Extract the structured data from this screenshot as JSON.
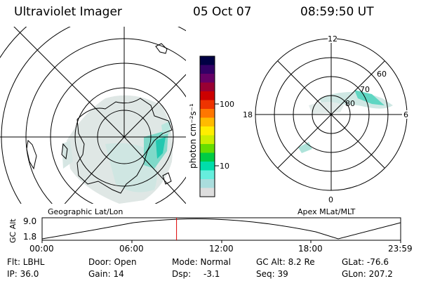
{
  "header": {
    "title": "Ultraviolet Imager",
    "date": "05 Oct 07",
    "time": "08:59:50 UT"
  },
  "colorbar": {
    "unit": "photon cm⁻²s⁻¹",
    "ticks": [
      "100",
      "10"
    ],
    "colors": [
      "#000044",
      "#330066",
      "#660066",
      "#990033",
      "#cc0000",
      "#ee3300",
      "#ff7700",
      "#ffbb00",
      "#ffee00",
      "#ccee00",
      "#66dd00",
      "#00cc44",
      "#00ddaa",
      "#66eedd",
      "#aadddd",
      "#dddddd"
    ]
  },
  "left_panel": {
    "label": "Geographic Lat/Lon"
  },
  "right_panel": {
    "label": "Apex MLat/MLT",
    "mlt_labels": {
      "top": "12",
      "right": "6",
      "bottom": "0",
      "left": "18"
    },
    "lat_labels": [
      "60",
      "70",
      "80"
    ]
  },
  "altitude_plot": {
    "ylabel": "GC Alt",
    "yticks": [
      "9.0",
      "1.8"
    ],
    "xticks": [
      "00:00",
      "06:00",
      "12:00",
      "18:00",
      "23:59"
    ],
    "current_time_fraction": 0.375,
    "marker_color": "#dd0000"
  },
  "info": {
    "flt": "Flt: LBHL",
    "door": "Door: Open",
    "mode": "Mode: Normal",
    "gc_alt": "GC Alt: 8.2 Re",
    "glat": "GLat: -76.6",
    "ip": "IP: 36.0",
    "gain": "Gain: 14",
    "dsp_label": "Dsp:",
    "dsp_value": "-3.1",
    "seq": "Seq: 39",
    "glon": "GLon: 207.2"
  }
}
